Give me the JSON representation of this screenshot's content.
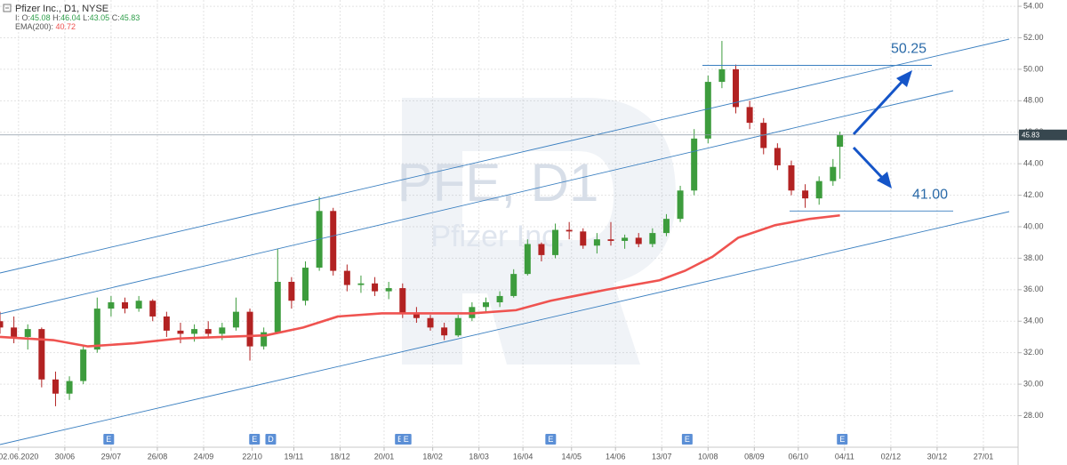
{
  "chart_data": {
    "type": "candlestick",
    "title": "Pfizer Inc., D1, NYSE",
    "info_label": "I:",
    "ohlc_labels": [
      "O:",
      "H:",
      "L:",
      "C:"
    ],
    "watermark": [
      "PFE, D1",
      "Pfizer Inc."
    ],
    "up_color": "#3d9c3d",
    "down_color": "#b22222",
    "x": [
      0,
      6,
      12,
      18,
      24,
      30,
      36,
      42,
      48,
      54,
      60,
      66,
      72,
      78,
      84,
      90,
      96,
      102,
      108,
      114,
      120,
      126,
      132,
      138,
      144,
      150,
      156,
      162,
      168,
      174,
      180,
      186,
      192,
      198,
      204,
      210,
      216,
      222,
      228,
      234,
      240,
      246,
      252,
      258,
      264,
      270,
      276,
      282,
      288,
      294,
      300,
      306,
      312,
      318,
      324,
      330,
      336,
      342,
      348,
      354,
      360,
      363
    ],
    "open": [
      34.0,
      33.6,
      33.0,
      33.5,
      30.3,
      29.4,
      30.2,
      32.2,
      34.8,
      35.2,
      34.8,
      35.3,
      34.3,
      33.4,
      33.2,
      33.5,
      33.2,
      33.6,
      34.6,
      32.4,
      33.3,
      36.5,
      35.3,
      37.4,
      41.0,
      37.2,
      36.3,
      36.4,
      35.9,
      36.1,
      34.5,
      34.2,
      33.6,
      33.1,
      34.2,
      34.9,
      35.2,
      35.6,
      37.0,
      38.9,
      38.2,
      39.8,
      39.7,
      38.8,
      39.2,
      39.1,
      39.3,
      38.9,
      39.6,
      40.5,
      42.3,
      45.6,
      49.2,
      50.0,
      47.6,
      46.6,
      45.0,
      43.9,
      42.3,
      41.8,
      42.9,
      45.08
    ],
    "high": [
      34.6,
      34.3,
      33.8,
      33.6,
      30.8,
      30.5,
      32.5,
      35.5,
      35.6,
      35.5,
      35.6,
      35.4,
      34.6,
      33.9,
      33.8,
      34.0,
      33.9,
      35.5,
      34.8,
      33.6,
      38.6,
      36.8,
      37.8,
      41.9,
      41.2,
      37.6,
      36.9,
      36.8,
      36.5,
      36.4,
      34.9,
      34.4,
      33.9,
      34.4,
      35.2,
      35.5,
      35.9,
      37.3,
      39.2,
      39.0,
      40.2,
      40.3,
      39.9,
      39.6,
      40.3,
      39.5,
      39.6,
      39.9,
      40.8,
      42.6,
      46.2,
      49.6,
      51.8,
      50.3,
      48.0,
      46.9,
      45.3,
      44.2,
      42.7,
      43.2,
      44.3,
      46.04
    ],
    "low": [
      33.2,
      32.6,
      32.2,
      29.8,
      28.6,
      29.0,
      30.0,
      32.0,
      34.3,
      34.5,
      34.6,
      34.0,
      33.0,
      32.6,
      32.7,
      32.9,
      32.8,
      33.4,
      31.5,
      32.2,
      33.2,
      34.8,
      35.0,
      37.2,
      36.9,
      35.9,
      35.8,
      35.6,
      35.4,
      34.2,
      33.9,
      33.4,
      32.8,
      33.0,
      34.0,
      34.5,
      34.9,
      35.5,
      36.9,
      37.8,
      38.0,
      39.2,
      38.6,
      38.3,
      38.8,
      38.6,
      38.7,
      38.7,
      39.4,
      40.3,
      42.0,
      45.3,
      48.8,
      47.2,
      46.2,
      44.6,
      43.6,
      42.0,
      41.2,
      41.4,
      42.6,
      43.05
    ],
    "close": [
      33.6,
      33.0,
      33.5,
      30.3,
      29.4,
      30.2,
      32.2,
      34.8,
      35.2,
      34.8,
      35.3,
      34.3,
      33.4,
      33.2,
      33.5,
      33.2,
      33.6,
      34.6,
      32.4,
      33.3,
      36.5,
      35.3,
      37.4,
      41.0,
      37.2,
      36.3,
      36.4,
      35.9,
      36.1,
      34.5,
      34.2,
      33.6,
      33.1,
      34.2,
      34.9,
      35.2,
      35.6,
      37.0,
      38.9,
      38.2,
      39.8,
      39.7,
      38.8,
      39.2,
      39.1,
      39.3,
      38.9,
      39.6,
      40.5,
      42.3,
      45.6,
      49.2,
      50.0,
      47.6,
      46.6,
      45.0,
      43.9,
      42.3,
      41.8,
      42.9,
      43.8,
      45.83
    ],
    "series": [
      {
        "name": "EMA(200):",
        "color": "#ef5350",
        "x": [
          0,
          23,
          38,
          58,
          77,
          96,
          115,
          131,
          146,
          165,
          185,
          204,
          223,
          238,
          262,
          285,
          296,
          308,
          319,
          335,
          350,
          363
        ],
        "values": [
          33.0,
          32.8,
          32.4,
          32.6,
          32.9,
          33.0,
          33.1,
          33.6,
          34.3,
          34.5,
          34.5,
          34.5,
          34.7,
          35.3,
          36.0,
          36.6,
          37.2,
          38.1,
          39.3,
          40.1,
          40.5,
          40.72
        ]
      }
    ],
    "levels": [
      {
        "value": 50.25,
        "label": "50.25"
      },
      {
        "value": 41,
        "label": "41.00"
      }
    ],
    "events": [
      {
        "x": 47,
        "label": "E"
      },
      {
        "x": 110,
        "label": "E"
      },
      {
        "x": 117,
        "label": "D"
      },
      {
        "x": 173,
        "label": "E"
      },
      {
        "x": 175.5,
        "label": "E"
      },
      {
        "x": 238,
        "label": "E"
      },
      {
        "x": 297,
        "label": "E"
      },
      {
        "x": 364,
        "label": "E"
      }
    ],
    "xlim": [
      0,
      440
    ],
    "ylim": [
      26.9,
      54.4
    ],
    "xticks": [
      {
        "value": 8,
        "label": "02.06.2020"
      },
      {
        "value": 28,
        "label": "30/06"
      },
      {
        "value": 48,
        "label": "29/07"
      },
      {
        "value": 68,
        "label": "26/08"
      },
      {
        "value": 88,
        "label": "24/09"
      },
      {
        "value": 109,
        "label": "22/10"
      },
      {
        "value": 127,
        "label": "19/11"
      },
      {
        "value": 147,
        "label": "18/12"
      },
      {
        "value": 166,
        "label": "20/01"
      },
      {
        "value": 187,
        "label": "18/02"
      },
      {
        "value": 207,
        "label": "18/03"
      },
      {
        "value": 226,
        "label": "16/04"
      },
      {
        "value": 247,
        "label": "14/05"
      },
      {
        "value": 266,
        "label": "14/06"
      },
      {
        "value": 286,
        "label": "13/07"
      },
      {
        "value": 306,
        "label": "10/08"
      },
      {
        "value": 326,
        "label": "08/09"
      },
      {
        "value": 345,
        "label": "06/10"
      },
      {
        "value": 365,
        "label": "04/11"
      },
      {
        "value": 385,
        "label": "02/12"
      },
      {
        "value": 405,
        "label": "30/12"
      },
      {
        "value": 425,
        "label": "27/01"
      }
    ],
    "yticks": [
      {
        "value": 28,
        "label": "28.00"
      },
      {
        "value": 30,
        "label": "30.00"
      },
      {
        "value": 32,
        "label": "32.00"
      },
      {
        "value": 34,
        "label": "34.00"
      },
      {
        "value": 36,
        "label": "36.00"
      },
      {
        "value": 38,
        "label": "38.00"
      },
      {
        "value": 40,
        "label": "40.00"
      },
      {
        "value": 42,
        "label": "42.00"
      },
      {
        "value": 44,
        "label": "44.00"
      },
      {
        "value": 46,
        "label": "46.00"
      },
      {
        "value": 48,
        "label": "48.00"
      },
      {
        "value": 50,
        "label": "50.00"
      },
      {
        "value": 52,
        "label": "52.00"
      },
      {
        "value": 54,
        "label": "54.00"
      }
    ],
    "grid": true
  }
}
